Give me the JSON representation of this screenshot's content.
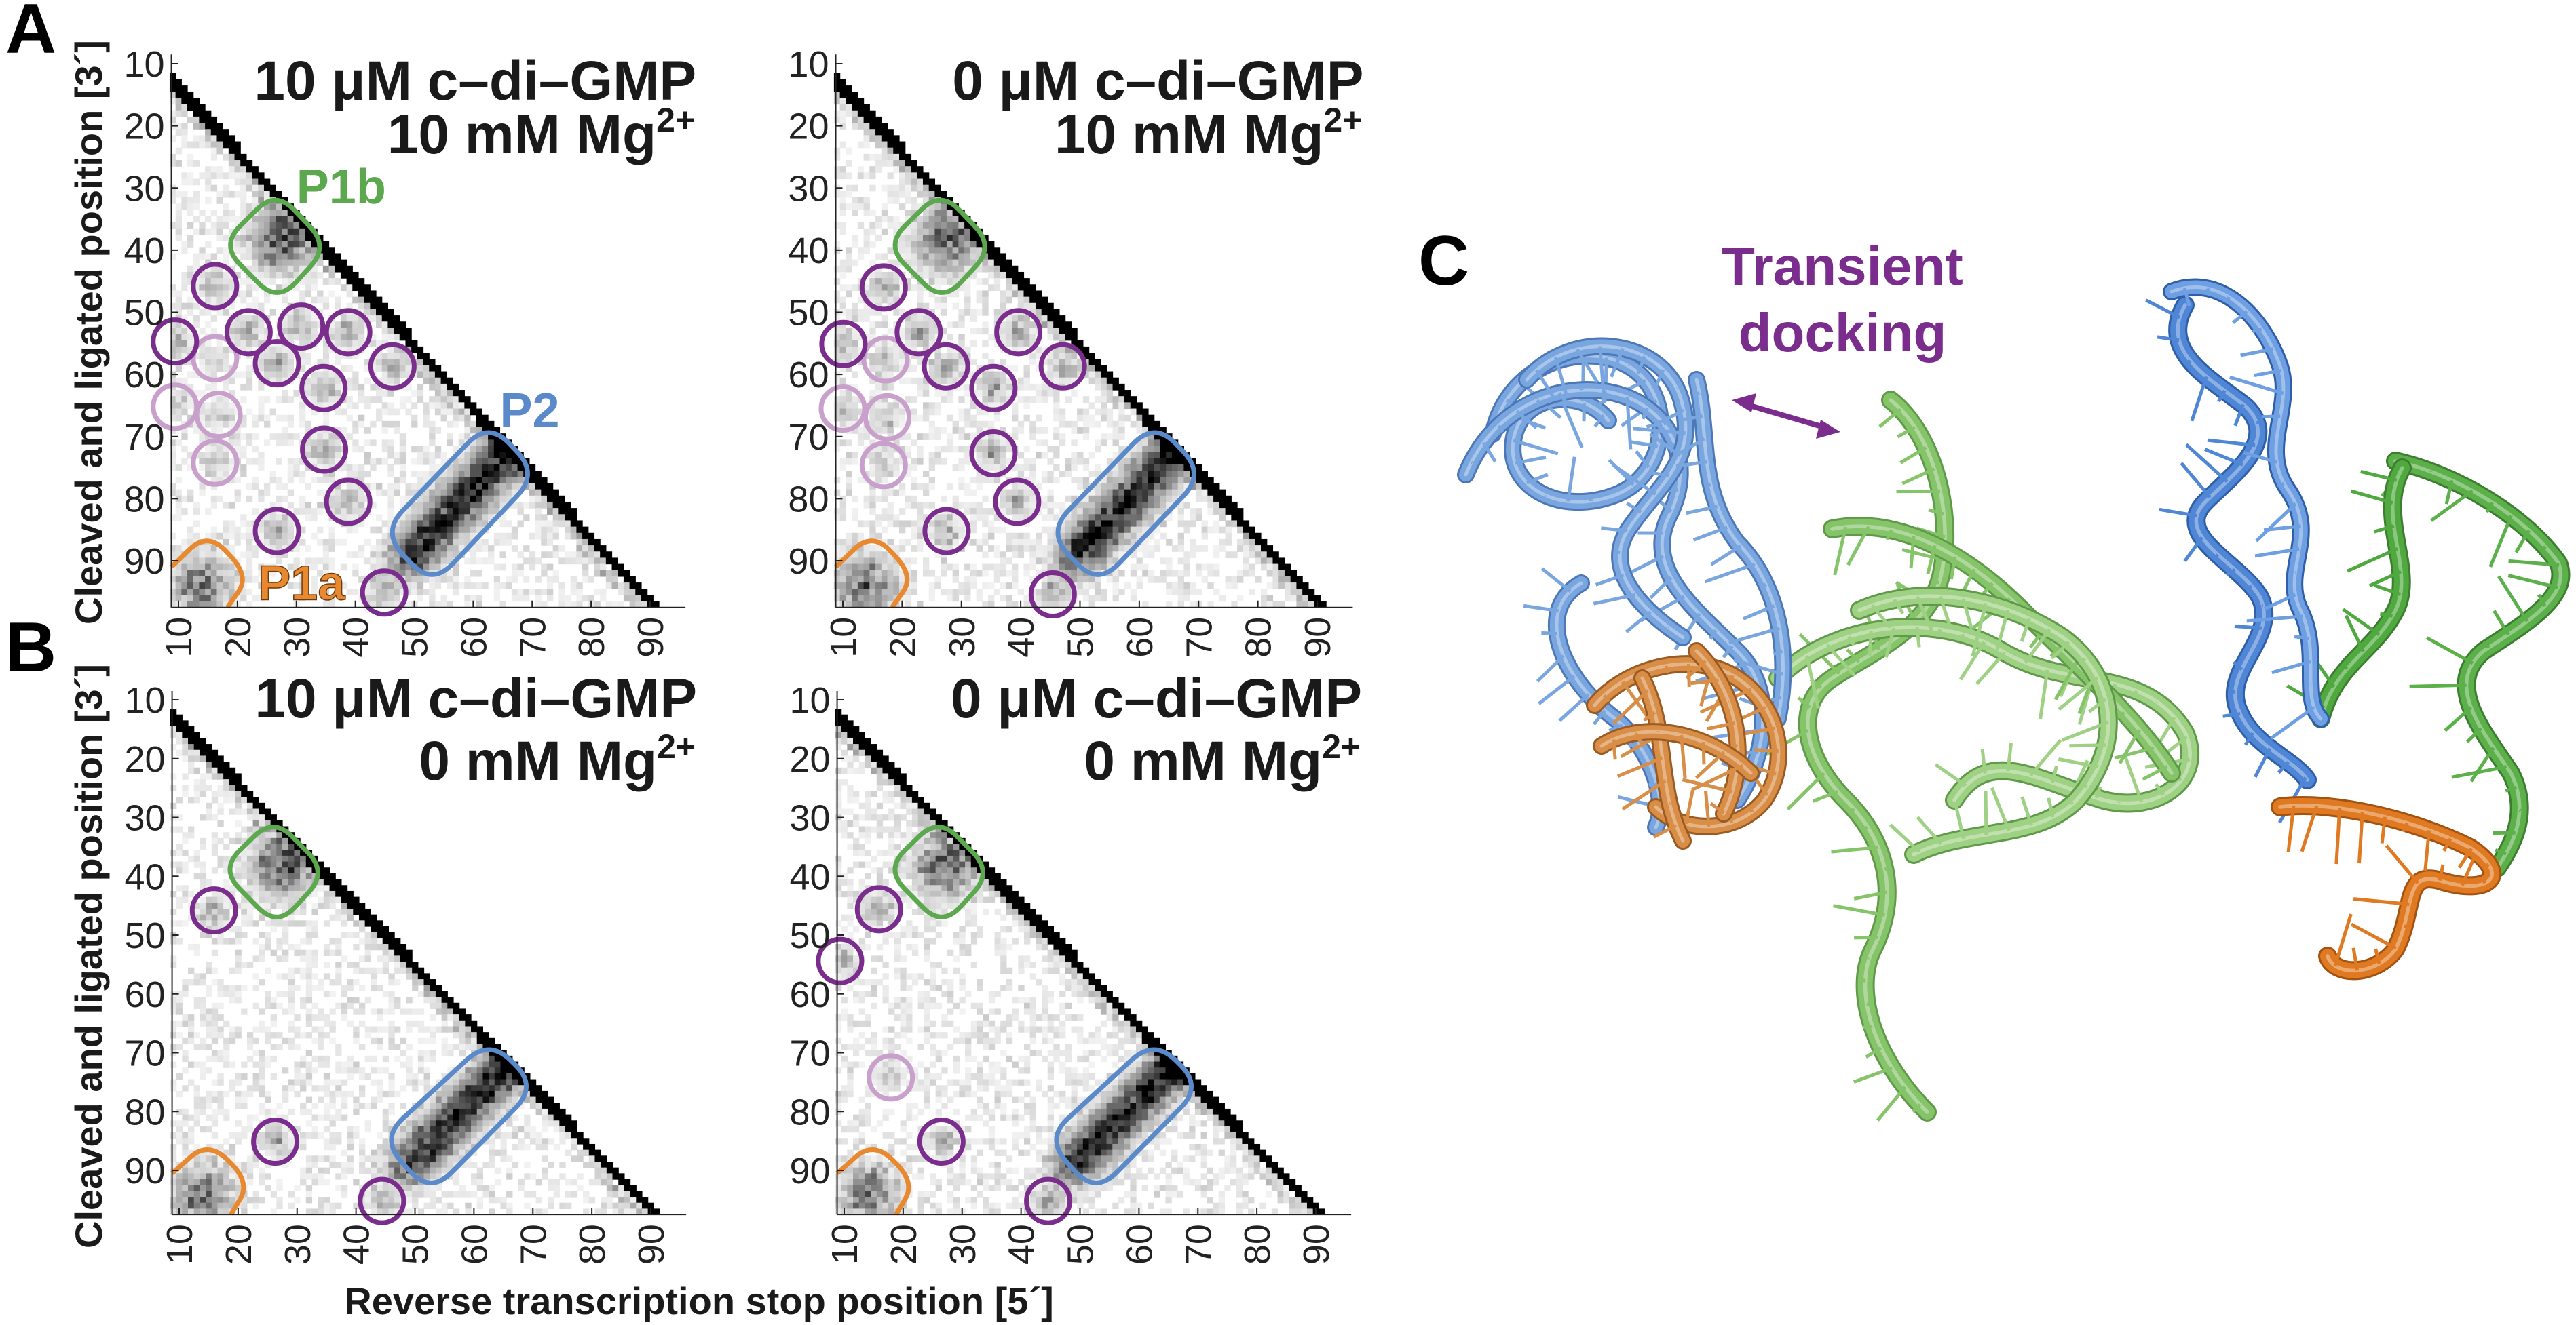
{
  "figure": {
    "panel_labels": {
      "A": "A",
      "B": "B",
      "C": "C"
    },
    "y_axis_label": "Cleaved and ligated position [3´]",
    "x_axis_label": "Reverse transcription stop position [5´]"
  },
  "colors": {
    "purple": "#7B2D8E",
    "light_purple": "#C9A0CC",
    "P1a": "#E8892F",
    "P1b": "#5BA84E",
    "P2": "#5B8ACB",
    "rna_blue": "#6F9BDB",
    "rna_green": "#8CCB6E",
    "rna_orange": "#D9893F"
  },
  "panel_c": {
    "annotation_line1": "Transient",
    "annotation_line2": "docking",
    "left_structure": "ensemble",
    "right_structure": "single"
  },
  "chart_data": [
    {
      "panel": "A",
      "type": "heatmap",
      "title_line1": "10 μM c–di–GMP",
      "title_line2": "10 mM Mg",
      "title_sup": "2+",
      "x_ticks": [
        10,
        20,
        30,
        40,
        50,
        60,
        70,
        80,
        90
      ],
      "y_ticks": [
        10,
        20,
        30,
        40,
        50,
        60,
        70,
        80,
        90
      ],
      "xlim": [
        9,
        96
      ],
      "ylim": [
        9,
        97.5
      ],
      "y_inverted": true,
      "region_labels": {
        "P1a": "P1a",
        "P1b": "P1b",
        "P2": "P2"
      },
      "regions": {
        "P1b": [
          [
            26.5,
            30.4
          ],
          [
            35.5,
            39.4
          ],
          [
            26.8,
            48.4
          ],
          [
            17.2,
            39.2
          ]
        ],
        "P2": [
          [
            62.6,
            67.6
          ],
          [
            71.0,
            76.0
          ],
          [
            53.0,
            94.0
          ],
          [
            44.5,
            85.4
          ]
        ],
        "P1a": [
          [
            8.8,
            91.0
          ],
          [
            15.0,
            85.3
          ],
          [
            22.0,
            92.5
          ],
          [
            18.3,
            97.5
          ]
        ]
      },
      "circles": [
        [
          16.2,
          45.8
        ],
        [
          9.4,
          54.7
        ],
        [
          21.9,
          53.2
        ],
        [
          30.8,
          52.3
        ],
        [
          38.8,
          53.2
        ],
        [
          26.7,
          58.2
        ],
        [
          46.3,
          58.7
        ],
        [
          34.6,
          62.2
        ],
        [
          34.7,
          72.1
        ],
        [
          38.8,
          80.5
        ],
        [
          26.7,
          85.2
        ],
        [
          44.9,
          95.1
        ]
      ],
      "light_circles": [
        [
          16.2,
          57.4
        ],
        [
          9.4,
          65.2
        ],
        [
          16.8,
          66.5
        ],
        [
          16.2,
          74.2
        ]
      ]
    },
    {
      "panel": "A",
      "type": "heatmap",
      "title_line1": "0 μM c–di–GMP",
      "title_line2": "10 mM Mg",
      "title_sup": "2+",
      "x_ticks": [
        10,
        20,
        30,
        40,
        50,
        60,
        70,
        80,
        90
      ],
      "y_ticks": [
        10,
        20,
        30,
        40,
        50,
        60,
        70,
        80,
        90
      ],
      "xlim": [
        9,
        96
      ],
      "ylim": [
        9,
        97.5
      ],
      "y_inverted": true,
      "regions": {
        "P1b": [
          [
            26.5,
            30.4
          ],
          [
            35.5,
            39.4
          ],
          [
            26.8,
            48.4
          ],
          [
            17.2,
            39.2
          ]
        ],
        "P2": [
          [
            62.6,
            67.6
          ],
          [
            71.0,
            76.0
          ],
          [
            53.0,
            94.0
          ],
          [
            44.5,
            85.4
          ]
        ],
        "P1a": [
          [
            8.8,
            91.0
          ],
          [
            15.0,
            85.3
          ],
          [
            22.0,
            92.5
          ],
          [
            18.3,
            97.5
          ]
        ]
      },
      "circles": [
        [
          16.9,
          46.0
        ],
        [
          10.1,
          55.1
        ],
        [
          22.8,
          53.2
        ],
        [
          27.4,
          58.7
        ],
        [
          39.6,
          53.2
        ],
        [
          47.1,
          58.7
        ],
        [
          35.4,
          62.2
        ],
        [
          35.4,
          72.7
        ],
        [
          39.4,
          80.5
        ],
        [
          27.5,
          85.2
        ],
        [
          45.4,
          95.4
        ]
      ],
      "light_circles": [
        [
          17.2,
          57.6
        ],
        [
          10.0,
          65.5
        ],
        [
          17.5,
          66.9
        ],
        [
          16.9,
          74.6
        ]
      ]
    },
    {
      "panel": "B",
      "type": "heatmap",
      "title_line1": "10 μM c–di–GMP",
      "title_line2": "0 mM Mg",
      "title_sup": "2+",
      "x_ticks": [
        10,
        20,
        30,
        40,
        50,
        60,
        70,
        80,
        90
      ],
      "y_ticks": [
        10,
        20,
        30,
        40,
        50,
        60,
        70,
        80,
        90
      ],
      "xlim": [
        9,
        96
      ],
      "ylim": [
        9,
        97.5
      ],
      "y_inverted": true,
      "regions": {
        "P1b": [
          [
            26.0,
            30.0
          ],
          [
            35.1,
            39.3
          ],
          [
            26.6,
            48.6
          ],
          [
            17.0,
            38.8
          ]
        ],
        "P2": [
          [
            62.6,
            67.7
          ],
          [
            70.7,
            75.7
          ],
          [
            52.6,
            94.0
          ],
          [
            44.2,
            84.6
          ]
        ],
        "P1a": [
          [
            8.8,
            90.5
          ],
          [
            15.0,
            85.0
          ],
          [
            22.0,
            92.0
          ],
          [
            18.8,
            97.5
          ]
        ]
      },
      "circles": [
        [
          15.9,
          45.8
        ],
        [
          26.3,
          85.1
        ],
        [
          44.4,
          95.2
        ]
      ],
      "light_circles": []
    },
    {
      "panel": "B",
      "type": "heatmap",
      "title_line1": "0 μM c–di–GMP",
      "title_line2": "0 mM Mg",
      "title_sup": "2+",
      "x_ticks": [
        10,
        20,
        30,
        40,
        50,
        60,
        70,
        80,
        90
      ],
      "y_ticks": [
        10,
        20,
        30,
        40,
        50,
        60,
        70,
        80,
        90
      ],
      "xlim": [
        9,
        96
      ],
      "ylim": [
        9,
        97.5
      ],
      "y_inverted": true,
      "regions": {
        "P1b": [
          [
            26.0,
            30.0
          ],
          [
            35.1,
            39.3
          ],
          [
            26.6,
            48.6
          ],
          [
            17.0,
            38.8
          ]
        ],
        "P2": [
          [
            62.6,
            67.7
          ],
          [
            70.7,
            75.7
          ],
          [
            52.6,
            94.0
          ],
          [
            44.2,
            84.6
          ]
        ],
        "P1a": [
          [
            8.8,
            90.5
          ],
          [
            15.0,
            85.0
          ],
          [
            22.0,
            92.0
          ],
          [
            18.8,
            97.5
          ]
        ]
      },
      "circles": [
        [
          15.9,
          45.6
        ],
        [
          9.3,
          54.4
        ],
        [
          26.5,
          85.1
        ],
        [
          44.6,
          95.2
        ]
      ],
      "light_circles": [
        [
          17.9,
          74.2
        ]
      ]
    }
  ]
}
